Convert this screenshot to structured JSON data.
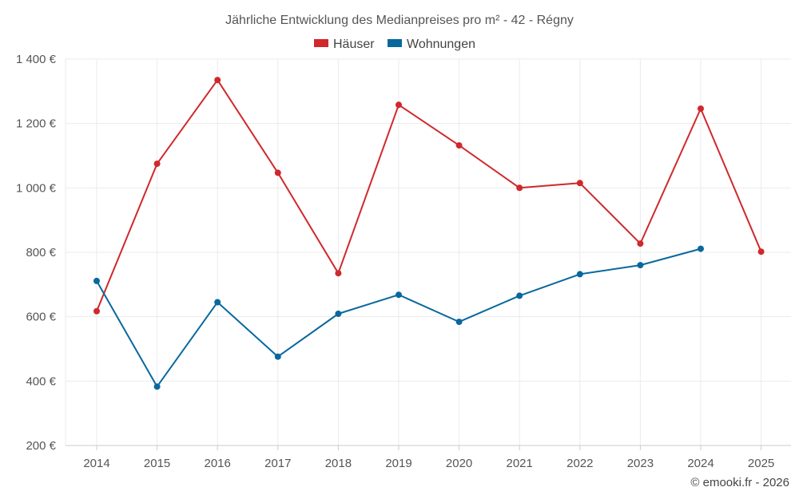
{
  "chart_data": {
    "type": "line",
    "title": "Jährliche Entwicklung des Medianpreises pro m² - 42 - Régny",
    "categories": [
      "2014",
      "2015",
      "2016",
      "2017",
      "2018",
      "2019",
      "2020",
      "2021",
      "2022",
      "2023",
      "2024",
      "2025"
    ],
    "y_ticks": [
      "200 €",
      "400 €",
      "600 €",
      "800 €",
      "1 000 €",
      "1 200 €",
      "1 400 €"
    ],
    "ylim": [
      200,
      1400
    ],
    "grid": true,
    "legend_position": "top-center",
    "series": [
      {
        "name": "Häuser",
        "color": "#d0282c",
        "values": [
          617,
          1075,
          1335,
          1047,
          735,
          1258,
          1132,
          1000,
          1015,
          827,
          1246,
          802
        ]
      },
      {
        "name": "Wohnungen",
        "color": "#08689d",
        "values": [
          711,
          383,
          645,
          476,
          609,
          668,
          584,
          665,
          732,
          760,
          811,
          null
        ]
      }
    ],
    "credit": "© emooki.fr - 2026"
  }
}
